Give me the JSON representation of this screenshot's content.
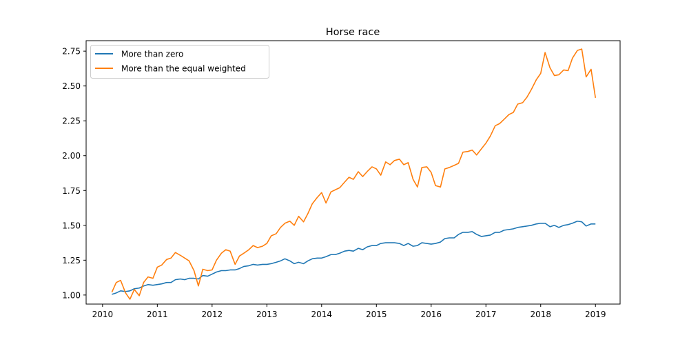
{
  "chart_data": {
    "type": "line",
    "title": "Horse race",
    "xlabel": "",
    "ylabel": "",
    "xlim": [
      2009.7,
      2019.45
    ],
    "ylim": [
      0.935,
      2.825
    ],
    "x_ticks": [
      2010,
      2011,
      2012,
      2013,
      2014,
      2015,
      2016,
      2017,
      2018,
      2019
    ],
    "x_tick_labels": [
      "2010",
      "2011",
      "2012",
      "2013",
      "2014",
      "2015",
      "2016",
      "2017",
      "2018",
      "2019"
    ],
    "y_ticks": [
      1.0,
      1.25,
      1.5,
      1.75,
      2.0,
      2.25,
      2.5,
      2.75
    ],
    "y_tick_labels": [
      "1.00",
      "1.25",
      "1.50",
      "1.75",
      "2.00",
      "2.25",
      "2.50",
      "2.75"
    ],
    "grid": false,
    "legend_position": "top-left",
    "series": [
      {
        "name": "More than zero",
        "color": "#1f77b4",
        "points": [
          [
            2010.17,
            1.005
          ],
          [
            2010.25,
            1.015
          ],
          [
            2010.33,
            1.03
          ],
          [
            2010.42,
            1.025
          ],
          [
            2010.5,
            1.03
          ],
          [
            2010.58,
            1.045
          ],
          [
            2010.67,
            1.05
          ],
          [
            2010.75,
            1.065
          ],
          [
            2010.83,
            1.075
          ],
          [
            2010.92,
            1.07
          ],
          [
            2011.0,
            1.075
          ],
          [
            2011.08,
            1.08
          ],
          [
            2011.17,
            1.09
          ],
          [
            2011.25,
            1.09
          ],
          [
            2011.33,
            1.11
          ],
          [
            2011.42,
            1.115
          ],
          [
            2011.5,
            1.11
          ],
          [
            2011.58,
            1.12
          ],
          [
            2011.67,
            1.12
          ],
          [
            2011.75,
            1.115
          ],
          [
            2011.83,
            1.14
          ],
          [
            2011.92,
            1.135
          ],
          [
            2012.0,
            1.15
          ],
          [
            2012.08,
            1.165
          ],
          [
            2012.17,
            1.175
          ],
          [
            2012.25,
            1.175
          ],
          [
            2012.33,
            1.18
          ],
          [
            2012.42,
            1.18
          ],
          [
            2012.5,
            1.19
          ],
          [
            2012.58,
            1.205
          ],
          [
            2012.67,
            1.21
          ],
          [
            2012.75,
            1.22
          ],
          [
            2012.83,
            1.215
          ],
          [
            2012.92,
            1.22
          ],
          [
            2013.0,
            1.22
          ],
          [
            2013.08,
            1.225
          ],
          [
            2013.17,
            1.235
          ],
          [
            2013.25,
            1.245
          ],
          [
            2013.33,
            1.26
          ],
          [
            2013.42,
            1.245
          ],
          [
            2013.5,
            1.225
          ],
          [
            2013.58,
            1.235
          ],
          [
            2013.67,
            1.225
          ],
          [
            2013.75,
            1.245
          ],
          [
            2013.83,
            1.26
          ],
          [
            2013.92,
            1.265
          ],
          [
            2014.0,
            1.265
          ],
          [
            2014.08,
            1.275
          ],
          [
            2014.17,
            1.29
          ],
          [
            2014.25,
            1.29
          ],
          [
            2014.33,
            1.3
          ],
          [
            2014.42,
            1.315
          ],
          [
            2014.5,
            1.32
          ],
          [
            2014.58,
            1.315
          ],
          [
            2014.67,
            1.335
          ],
          [
            2014.75,
            1.325
          ],
          [
            2014.83,
            1.345
          ],
          [
            2014.92,
            1.355
          ],
          [
            2015.0,
            1.355
          ],
          [
            2015.08,
            1.37
          ],
          [
            2015.17,
            1.375
          ],
          [
            2015.25,
            1.375
          ],
          [
            2015.33,
            1.375
          ],
          [
            2015.42,
            1.37
          ],
          [
            2015.5,
            1.355
          ],
          [
            2015.58,
            1.37
          ],
          [
            2015.67,
            1.35
          ],
          [
            2015.75,
            1.355
          ],
          [
            2015.83,
            1.375
          ],
          [
            2015.92,
            1.37
          ],
          [
            2016.0,
            1.365
          ],
          [
            2016.08,
            1.37
          ],
          [
            2016.17,
            1.38
          ],
          [
            2016.25,
            1.405
          ],
          [
            2016.33,
            1.41
          ],
          [
            2016.42,
            1.41
          ],
          [
            2016.5,
            1.435
          ],
          [
            2016.58,
            1.45
          ],
          [
            2016.67,
            1.45
          ],
          [
            2016.75,
            1.455
          ],
          [
            2016.83,
            1.435
          ],
          [
            2016.92,
            1.42
          ],
          [
            2017.0,
            1.425
          ],
          [
            2017.08,
            1.43
          ],
          [
            2017.17,
            1.45
          ],
          [
            2017.25,
            1.45
          ],
          [
            2017.33,
            1.465
          ],
          [
            2017.42,
            1.47
          ],
          [
            2017.5,
            1.475
          ],
          [
            2017.58,
            1.485
          ],
          [
            2017.67,
            1.49
          ],
          [
            2017.75,
            1.495
          ],
          [
            2017.83,
            1.5
          ],
          [
            2017.92,
            1.51
          ],
          [
            2018.0,
            1.515
          ],
          [
            2018.08,
            1.515
          ],
          [
            2018.17,
            1.49
          ],
          [
            2018.25,
            1.5
          ],
          [
            2018.33,
            1.485
          ],
          [
            2018.42,
            1.5
          ],
          [
            2018.5,
            1.505
          ],
          [
            2018.58,
            1.515
          ],
          [
            2018.67,
            1.53
          ],
          [
            2018.75,
            1.525
          ],
          [
            2018.83,
            1.495
          ],
          [
            2018.92,
            1.51
          ],
          [
            2019.0,
            1.51
          ]
        ]
      },
      {
        "name": "More than the equal weighted",
        "color": "#ff7f0e",
        "points": [
          [
            2010.17,
            1.02
          ],
          [
            2010.25,
            1.09
          ],
          [
            2010.33,
            1.105
          ],
          [
            2010.42,
            1.015
          ],
          [
            2010.5,
            0.97
          ],
          [
            2010.58,
            1.04
          ],
          [
            2010.67,
            0.995
          ],
          [
            2010.75,
            1.09
          ],
          [
            2010.83,
            1.13
          ],
          [
            2010.92,
            1.12
          ],
          [
            2011.0,
            1.2
          ],
          [
            2011.08,
            1.215
          ],
          [
            2011.17,
            1.255
          ],
          [
            2011.25,
            1.265
          ],
          [
            2011.33,
            1.305
          ],
          [
            2011.42,
            1.285
          ],
          [
            2011.5,
            1.265
          ],
          [
            2011.58,
            1.245
          ],
          [
            2011.67,
            1.175
          ],
          [
            2011.75,
            1.065
          ],
          [
            2011.83,
            1.185
          ],
          [
            2011.92,
            1.175
          ],
          [
            2012.0,
            1.18
          ],
          [
            2012.08,
            1.25
          ],
          [
            2012.17,
            1.3
          ],
          [
            2012.25,
            1.325
          ],
          [
            2012.33,
            1.315
          ],
          [
            2012.42,
            1.22
          ],
          [
            2012.5,
            1.28
          ],
          [
            2012.58,
            1.3
          ],
          [
            2012.67,
            1.325
          ],
          [
            2012.75,
            1.355
          ],
          [
            2012.83,
            1.34
          ],
          [
            2012.92,
            1.35
          ],
          [
            2013.0,
            1.37
          ],
          [
            2013.08,
            1.425
          ],
          [
            2013.17,
            1.44
          ],
          [
            2013.25,
            1.485
          ],
          [
            2013.33,
            1.515
          ],
          [
            2013.42,
            1.53
          ],
          [
            2013.5,
            1.5
          ],
          [
            2013.58,
            1.565
          ],
          [
            2013.67,
            1.525
          ],
          [
            2013.75,
            1.585
          ],
          [
            2013.83,
            1.655
          ],
          [
            2013.92,
            1.7
          ],
          [
            2014.0,
            1.735
          ],
          [
            2014.08,
            1.66
          ],
          [
            2014.17,
            1.74
          ],
          [
            2014.25,
            1.755
          ],
          [
            2014.33,
            1.77
          ],
          [
            2014.42,
            1.81
          ],
          [
            2014.5,
            1.845
          ],
          [
            2014.58,
            1.83
          ],
          [
            2014.67,
            1.885
          ],
          [
            2014.75,
            1.85
          ],
          [
            2014.83,
            1.885
          ],
          [
            2014.92,
            1.92
          ],
          [
            2015.0,
            1.905
          ],
          [
            2015.08,
            1.86
          ],
          [
            2015.17,
            1.955
          ],
          [
            2015.25,
            1.935
          ],
          [
            2015.33,
            1.965
          ],
          [
            2015.42,
            1.975
          ],
          [
            2015.5,
            1.935
          ],
          [
            2015.58,
            1.95
          ],
          [
            2015.67,
            1.83
          ],
          [
            2015.75,
            1.775
          ],
          [
            2015.83,
            1.915
          ],
          [
            2015.92,
            1.92
          ],
          [
            2016.0,
            1.88
          ],
          [
            2016.08,
            1.785
          ],
          [
            2016.17,
            1.775
          ],
          [
            2016.25,
            1.905
          ],
          [
            2016.33,
            1.915
          ],
          [
            2016.42,
            1.93
          ],
          [
            2016.5,
            1.945
          ],
          [
            2016.58,
            2.025
          ],
          [
            2016.67,
            2.03
          ],
          [
            2016.75,
            2.04
          ],
          [
            2016.83,
            2.005
          ],
          [
            2016.92,
            2.05
          ],
          [
            2017.0,
            2.09
          ],
          [
            2017.08,
            2.14
          ],
          [
            2017.17,
            2.215
          ],
          [
            2017.25,
            2.23
          ],
          [
            2017.33,
            2.26
          ],
          [
            2017.42,
            2.295
          ],
          [
            2017.5,
            2.31
          ],
          [
            2017.58,
            2.37
          ],
          [
            2017.67,
            2.38
          ],
          [
            2017.75,
            2.42
          ],
          [
            2017.83,
            2.475
          ],
          [
            2017.92,
            2.545
          ],
          [
            2018.0,
            2.59
          ],
          [
            2018.08,
            2.74
          ],
          [
            2018.17,
            2.63
          ],
          [
            2018.25,
            2.575
          ],
          [
            2018.33,
            2.58
          ],
          [
            2018.42,
            2.615
          ],
          [
            2018.5,
            2.61
          ],
          [
            2018.58,
            2.7
          ],
          [
            2018.67,
            2.755
          ],
          [
            2018.75,
            2.765
          ],
          [
            2018.83,
            2.565
          ],
          [
            2018.92,
            2.62
          ],
          [
            2019.0,
            2.415
          ]
        ]
      }
    ]
  }
}
